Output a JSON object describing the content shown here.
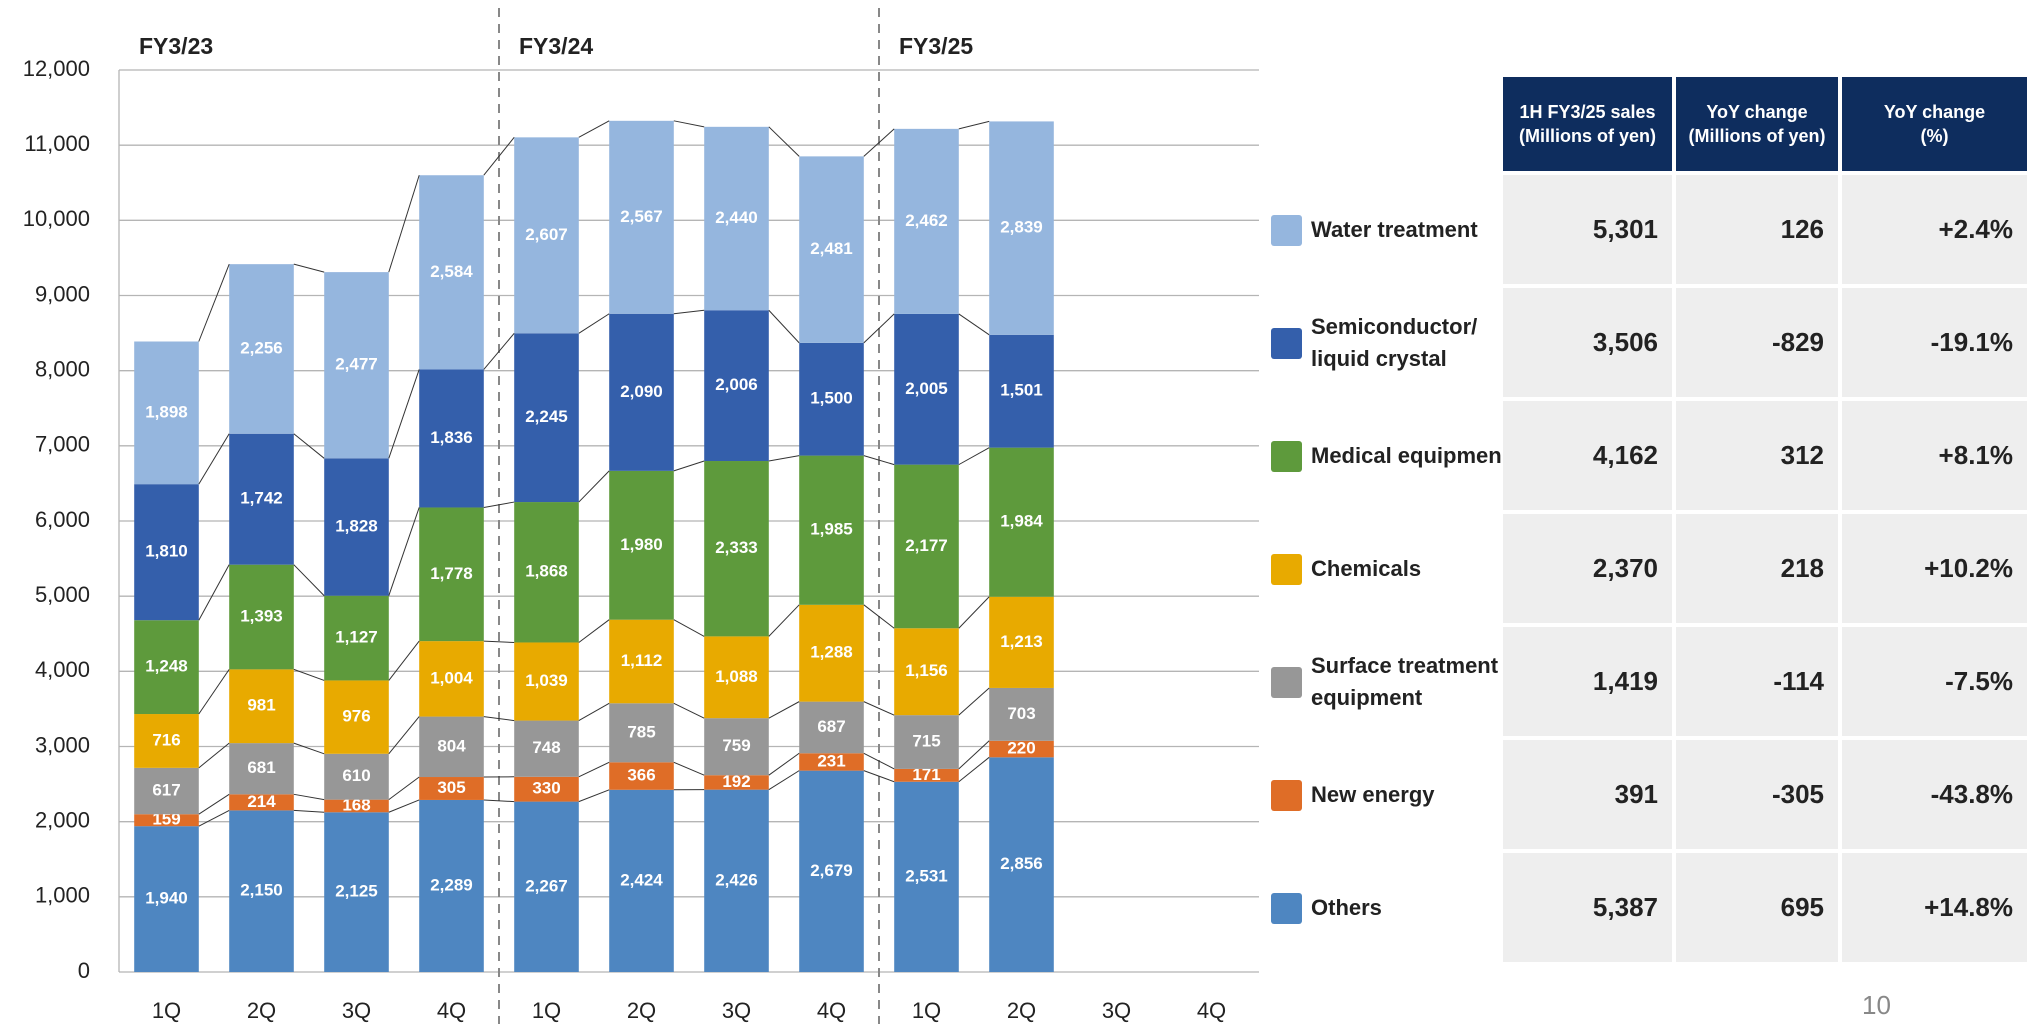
{
  "chart_data": {
    "type": "stacked_bar",
    "groups": [
      "FY3/23",
      "FY3/24",
      "FY3/25"
    ],
    "categories": [
      "1Q",
      "2Q",
      "3Q",
      "4Q",
      "1Q",
      "2Q",
      "3Q",
      "4Q",
      "1Q",
      "2Q",
      "3Q",
      "4Q"
    ],
    "ylim": [
      0,
      12000
    ],
    "yticks": [
      0,
      {
        "value": 1000,
        "label": "1,000"
      },
      {
        "value": 2000,
        "label": "2,000"
      },
      {
        "value": 3000,
        "label": "3,000"
      },
      {
        "value": 4000,
        "label": "4,000"
      },
      {
        "value": 5000,
        "label": "5,000"
      },
      {
        "value": 6000,
        "label": "6,000"
      },
      {
        "value": 7000,
        "label": "7,000"
      },
      {
        "value": 8000,
        "label": "8,000"
      },
      {
        "value": 9000,
        "label": "9,000"
      },
      {
        "value": 10000,
        "label": "10,000"
      },
      {
        "value": 11000,
        "label": "11,000"
      },
      {
        "value": 12000,
        "label": "12,000"
      }
    ],
    "grid": true,
    "series": [
      {
        "name": "Others",
        "color": "#4e86c1",
        "values": [
          1940,
          2150,
          2125,
          2289,
          2267,
          2424,
          2426,
          2679,
          2531,
          2856,
          null,
          null
        ],
        "value_labels": [
          "1,940",
          "2,150",
          "2,125",
          "2,289",
          "2,267",
          "2,424",
          "2,426",
          "2,679",
          "2,531",
          "2,856",
          null,
          null
        ]
      },
      {
        "name": "New energy",
        "color": "#df6d27",
        "values": [
          159,
          214,
          168,
          305,
          330,
          366,
          192,
          231,
          171,
          220,
          null,
          null
        ]
      },
      {
        "name": "Surface treatment equipment",
        "color": "#979797",
        "values": [
          617,
          681,
          610,
          804,
          748,
          785,
          759,
          687,
          715,
          703,
          null,
          null
        ]
      },
      {
        "name": "Chemicals",
        "color": "#e8aa00",
        "values": [
          716,
          981,
          976,
          1004,
          1039,
          1112,
          1088,
          1288,
          1156,
          1213,
          null,
          null
        ],
        "value_labels": [
          "716",
          "981",
          "976",
          "1,004",
          "1,039",
          "1,112",
          "1,088",
          "1,288",
          "1,156",
          "1,213",
          null,
          null
        ]
      },
      {
        "name": "Medical equipment",
        "color": "#5e9a3c",
        "values": [
          1248,
          1393,
          1127,
          1778,
          1868,
          1980,
          2333,
          1985,
          2177,
          1984,
          null,
          null
        ],
        "value_labels": [
          "1,248",
          "1,393",
          "1,127",
          "1,778",
          "1,868",
          "1,980",
          "2,333",
          "1,985",
          "2,177",
          "1,984",
          null,
          null
        ]
      },
      {
        "name": "Semiconductor/ liquid crystal",
        "color": "#345fab",
        "values": [
          1810,
          1742,
          1828,
          1836,
          2245,
          2090,
          2006,
          1500,
          2005,
          1501,
          null,
          null
        ],
        "value_labels": [
          "1,810",
          "1,742",
          "1,828",
          "1,836",
          "2,245",
          "2,090",
          "2,006",
          "1,500",
          "2,005",
          "1,501",
          null,
          null
        ]
      },
      {
        "name": "Water treatment",
        "color": "#95b6de",
        "values": [
          1898,
          2256,
          2477,
          2584,
          2607,
          2567,
          2440,
          2481,
          2462,
          2839,
          null,
          null
        ],
        "value_labels": [
          "1,898",
          "2,256",
          "2,477",
          "2,584",
          "2,607",
          "2,567",
          "2,440",
          "2,481",
          "2,462",
          "2,839",
          null,
          null
        ]
      }
    ]
  },
  "table": {
    "headers": [
      "1H FY3/25 sales\n(Millions of yen)",
      "YoY change\n(Millions of yen)",
      "YoY change\n(%)"
    ],
    "rows": [
      [
        "5,301",
        "126",
        "+2.4%"
      ],
      [
        "3,506",
        "-829",
        "-19.1%"
      ],
      [
        "4,162",
        "312",
        "+8.1%"
      ],
      [
        "2,370",
        "218",
        "+10.2%"
      ],
      [
        "1,419",
        "-114",
        "-7.5%"
      ],
      [
        "391",
        "-305",
        "-43.8%"
      ],
      [
        "5,387",
        "695",
        "+14.8%"
      ]
    ]
  },
  "page_number": "10"
}
